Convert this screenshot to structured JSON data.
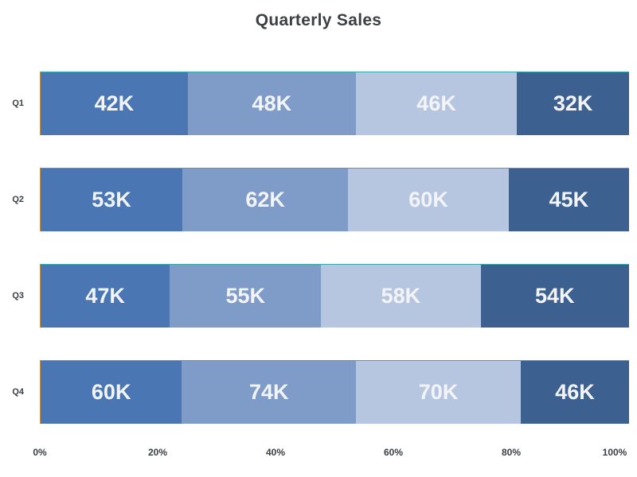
{
  "chart_data": {
    "type": "bar",
    "orientation": "horizontal",
    "stacking": "percent",
    "title": "Quarterly Sales",
    "categories": [
      "Q1",
      "Q2",
      "Q3",
      "Q4"
    ],
    "rows": [
      {
        "category": "Q1",
        "values": [
          42,
          48,
          46,
          32
        ],
        "labels": [
          "42K",
          "48K",
          "46K",
          "32K"
        ]
      },
      {
        "category": "Q2",
        "values": [
          53,
          62,
          60,
          45
        ],
        "labels": [
          "53K",
          "62K",
          "60K",
          "45K"
        ]
      },
      {
        "category": "Q3",
        "values": [
          47,
          55,
          58,
          54
        ],
        "labels": [
          "47K",
          "55K",
          "58K",
          "54K"
        ]
      },
      {
        "category": "Q4",
        "values": [
          60,
          74,
          70,
          46
        ],
        "labels": [
          "60K",
          "74K",
          "70K",
          "46K"
        ]
      }
    ],
    "segment_colors": [
      "#4a77b4",
      "#7f9cc9",
      "#b7c6e0",
      "#3c6191"
    ],
    "x_axis": {
      "tick_labels": [
        "0%",
        "20%",
        "40%",
        "60%",
        "80%",
        "100%"
      ],
      "range_percent": [
        0,
        100
      ]
    },
    "legend": "none",
    "grid": "off",
    "text_color": "#3b4043",
    "value_label_color": "#f2f4f8",
    "bar_border_top_color": "#38a9ab",
    "bar_border_left_color": "#d2903f"
  }
}
